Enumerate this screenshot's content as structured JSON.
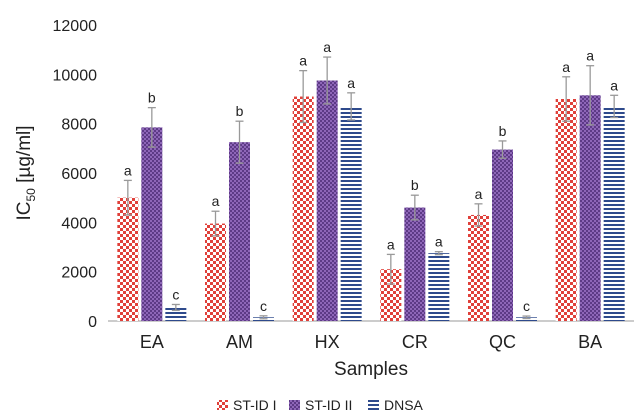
{
  "chart_data": {
    "type": "bar",
    "categories": [
      "EA",
      "AM",
      "HX",
      "CR",
      "QC",
      "BA"
    ],
    "series": [
      {
        "name": "ST-ID I",
        "values": [
          5000,
          3950,
          9100,
          2100,
          4300,
          9000
        ],
        "errors": [
          700,
          500,
          1050,
          600,
          450,
          900
        ],
        "labels": [
          "a",
          "a",
          "a",
          "a",
          "a",
          "a"
        ],
        "color": "#e0403a"
      },
      {
        "name": "ST-ID II",
        "values": [
          7850,
          7250,
          9750,
          4600,
          6950,
          9150
        ],
        "errors": [
          800,
          850,
          950,
          500,
          350,
          1200
        ],
        "labels": [
          "b",
          "b",
          "a",
          "b",
          "b",
          "a"
        ],
        "color": "#7b4fa5"
      },
      {
        "name": "DNSA",
        "values": [
          550,
          150,
          8700,
          2750,
          150,
          8700
        ],
        "errors": [
          120,
          60,
          550,
          60,
          50,
          450
        ],
        "labels": [
          "c",
          "c",
          "a",
          "a",
          "c",
          "a"
        ],
        "color": "#2e4a8c"
      }
    ],
    "xlabel": "Samples",
    "ylabel": "IC50 [µg/ml]",
    "ylabel_main": "IC",
    "ylabel_sub": "50",
    "ylabel_rest": " [µg/ml]",
    "ylim": [
      0,
      12000
    ],
    "yticks": [
      "0",
      "2000",
      "4000",
      "6000",
      "8000",
      "10000",
      "12000"
    ],
    "grid": false,
    "legend_position": "bottom"
  }
}
